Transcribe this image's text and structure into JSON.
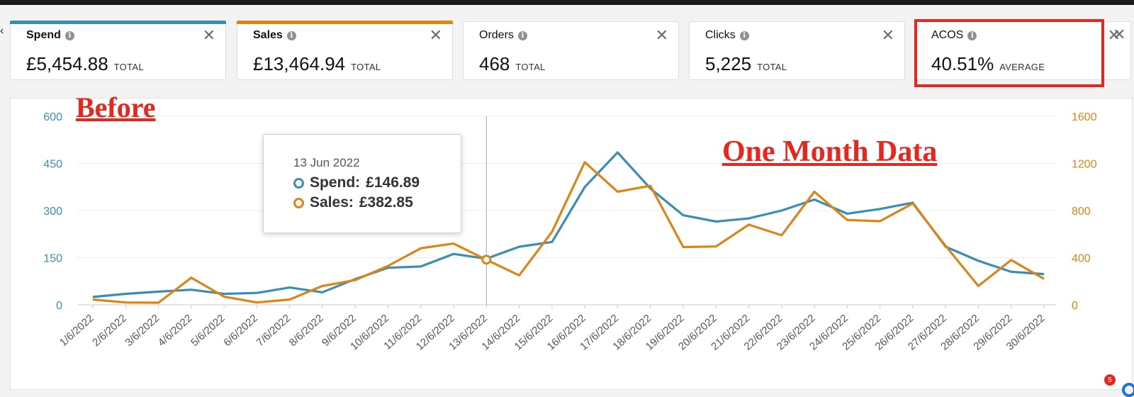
{
  "cards": [
    {
      "id": "spend",
      "title": "Spend",
      "value": "£5,454.88",
      "unit": "TOTAL",
      "close": "✕",
      "accent": "#3a8eb6",
      "bold": true
    },
    {
      "id": "sales",
      "title": "Sales",
      "value": "£13,464.94",
      "unit": "TOTAL",
      "close": "✕",
      "accent": "#de8415",
      "bold": true
    },
    {
      "id": "orders",
      "title": "Orders",
      "value": "468",
      "unit": "TOTAL",
      "close": "✕",
      "accent": "",
      "bold": false
    },
    {
      "id": "clicks",
      "title": "Clicks",
      "value": "5,225",
      "unit": "TOTAL",
      "close": "✕",
      "accent": "",
      "bold": false
    },
    {
      "id": "acos",
      "title": "ACOS",
      "value": "40.51%",
      "unit": "AVERAGE",
      "close": "✕",
      "accent": "",
      "bold": false
    }
  ],
  "overlay": {
    "before": "Before",
    "one_month": "One Month Data"
  },
  "tooltip": {
    "date": "13 Jun 2022",
    "spend_label": "Spend:",
    "spend_value": "£146.89",
    "sales_label": "Sales:",
    "sales_value": "£382.85"
  },
  "badge": "5",
  "colors": {
    "spend": "#3a8eb6",
    "sales": "#de8415",
    "highlight": "#e8261c"
  },
  "chart_data": {
    "type": "line",
    "x": [
      "1/6/2022",
      "2/6/2022",
      "3/6/2022",
      "4/6/2022",
      "5/6/2022",
      "6/6/2022",
      "7/6/2022",
      "8/6/2022",
      "9/6/2022",
      "10/6/2022",
      "11/6/2022",
      "12/6/2022",
      "13/6/2022",
      "14/6/2022",
      "15/6/2022",
      "16/6/2022",
      "17/6/2022",
      "18/6/2022",
      "19/6/2022",
      "20/6/2022",
      "21/6/2022",
      "22/6/2022",
      "23/6/2022",
      "24/6/2022",
      "25/6/2022",
      "26/6/2022",
      "27/6/2022",
      "28/6/2022",
      "29/6/2022",
      "30/6/2022"
    ],
    "series": [
      {
        "name": "Spend",
        "axis": "left",
        "values": [
          25,
          35,
          42,
          48,
          35,
          38,
          55,
          40,
          82,
          118,
          122,
          162,
          146.89,
          185,
          200,
          375,
          485,
          370,
          285,
          265,
          275,
          300,
          335,
          290,
          305,
          325,
          185,
          140,
          105,
          98
        ]
      },
      {
        "name": "Sales",
        "axis": "right",
        "values": [
          45,
          20,
          18,
          230,
          70,
          20,
          45,
          160,
          210,
          330,
          480,
          520,
          382.85,
          250,
          620,
          1210,
          960,
          1010,
          490,
          495,
          680,
          590,
          960,
          720,
          710,
          860,
          500,
          160,
          380,
          220
        ]
      }
    ],
    "y_left": {
      "ticks": [
        0,
        150,
        300,
        450,
        600
      ],
      "range": [
        0,
        600
      ]
    },
    "y_right": {
      "ticks": [
        0,
        400,
        800,
        1200,
        1600
      ],
      "range": [
        0,
        1600
      ]
    },
    "highlight_x": "13/6/2022",
    "grid": true
  }
}
